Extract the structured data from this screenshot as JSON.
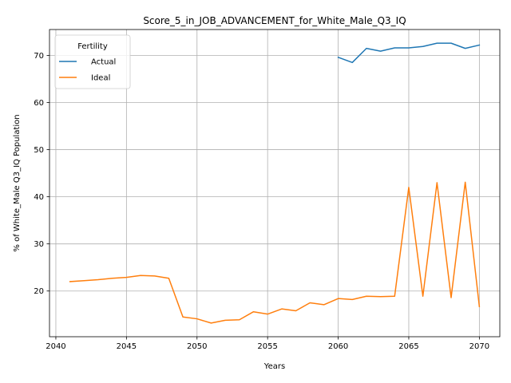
{
  "chart_data": {
    "type": "line",
    "title": "Score_5_in_JOB_ADVANCEMENT_for_White_Male_Q3_IQ",
    "xlabel": "Years",
    "ylabel": "% of White_Male Q3_IQ Population",
    "xlim": [
      2039.55,
      2071.45
    ],
    "ylim": [
      10.3,
      75.5
    ],
    "xticks": [
      2040,
      2045,
      2050,
      2055,
      2060,
      2065,
      2070
    ],
    "yticks": [
      20,
      30,
      40,
      50,
      60,
      70
    ],
    "grid": true,
    "legend": {
      "title": "Fertility",
      "placement": "top-left"
    },
    "series": [
      {
        "name": "Actual",
        "color": "#1f77b4",
        "x": [
          2060,
          2061,
          2062,
          2063,
          2064,
          2065,
          2066,
          2067,
          2068,
          2069,
          2070
        ],
        "y": [
          69.6,
          68.5,
          71.5,
          70.9,
          71.6,
          71.6,
          71.9,
          72.6,
          72.6,
          71.5,
          72.2
        ]
      },
      {
        "name": "Ideal",
        "color": "#ff7f0e",
        "x": [
          2041,
          2042,
          2043,
          2044,
          2045,
          2046,
          2047,
          2048,
          2049,
          2050,
          2051,
          2052,
          2053,
          2054,
          2055,
          2056,
          2057,
          2058,
          2059,
          2060,
          2061,
          2062,
          2063,
          2064,
          2065,
          2066,
          2067,
          2068,
          2069,
          2070
        ],
        "y": [
          22.0,
          22.2,
          22.4,
          22.7,
          22.9,
          23.3,
          23.2,
          22.7,
          14.5,
          14.1,
          13.2,
          13.8,
          13.9,
          15.6,
          15.1,
          16.2,
          15.8,
          17.5,
          17.1,
          18.4,
          18.2,
          18.9,
          18.8,
          18.9,
          42.0,
          18.9,
          43.0,
          18.6,
          43.1,
          16.7
        ]
      }
    ]
  }
}
